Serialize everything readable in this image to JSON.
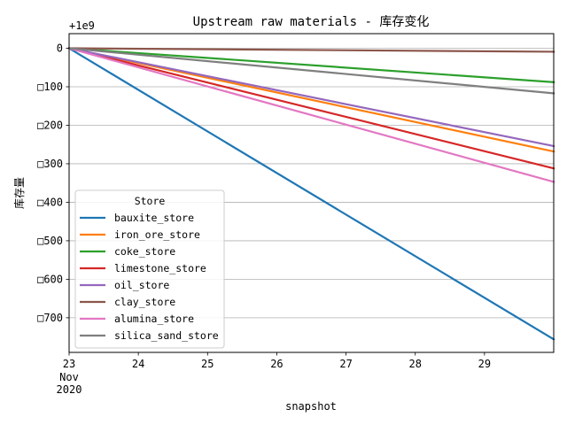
{
  "chart_data": {
    "type": "line",
    "title": "Upstream raw materials - 库存变化",
    "xlabel": "snapshot",
    "ylabel": "库存量",
    "y_offset_label": "+1e9",
    "x_tick_labels": [
      "23",
      "24",
      "25",
      "26",
      "27",
      "28",
      "29"
    ],
    "x_tick_values": [
      23,
      24,
      25,
      26,
      27,
      28,
      29
    ],
    "x_secondary_labels": [
      "Nov",
      "2020"
    ],
    "xlim": [
      23,
      30
    ],
    "y_tick_labels": [
      "0",
      "□100",
      "□200",
      "□300",
      "□400",
      "□500",
      "□600",
      "□700"
    ],
    "y_tick_values": [
      0,
      -100,
      -200,
      -300,
      -400,
      -500,
      -600,
      -700
    ],
    "ylim": [
      -790,
      38
    ],
    "grid": "horizontal",
    "legend": {
      "title": "Store",
      "placement": "lower-left"
    },
    "series": [
      {
        "name": "bauxite_store",
        "color": "#1f77b4",
        "x": [
          23,
          30
        ],
        "y": [
          0,
          -756
        ]
      },
      {
        "name": "iron_ore_store",
        "color": "#ff7f0e",
        "x": [
          23,
          30
        ],
        "y": [
          0,
          -268
        ]
      },
      {
        "name": "coke_store",
        "color": "#2ca02c",
        "x": [
          23,
          30
        ],
        "y": [
          0,
          -88
        ]
      },
      {
        "name": "limestone_store",
        "color": "#d62728",
        "x": [
          23,
          30
        ],
        "y": [
          0,
          -312
        ]
      },
      {
        "name": "oil_store",
        "color": "#9467bd",
        "x": [
          23,
          30
        ],
        "y": [
          0,
          -254
        ]
      },
      {
        "name": "clay_store",
        "color": "#8c564b",
        "x": [
          23,
          30
        ],
        "y": [
          0,
          -9
        ]
      },
      {
        "name": "alumina_store",
        "color": "#e377c2",
        "x": [
          23,
          30
        ],
        "y": [
          0,
          -347
        ]
      },
      {
        "name": "silica_sand_store",
        "color": "#7f7f7f",
        "x": [
          23,
          30
        ],
        "y": [
          0,
          -117
        ]
      }
    ]
  }
}
